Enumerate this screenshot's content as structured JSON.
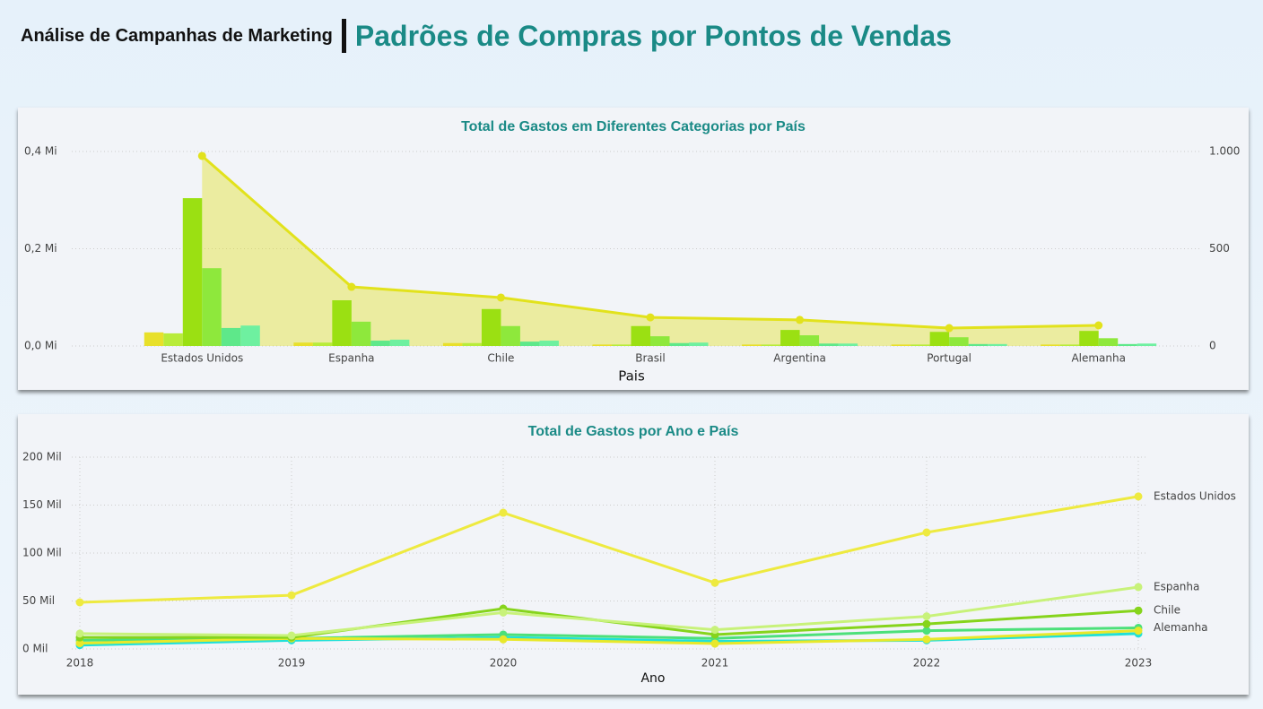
{
  "header": {
    "title": "Análise de Campanhas de Marketing",
    "subtitle": "Padrões de Compras por Pontos de Vendas"
  },
  "chart_data": [
    {
      "type": "bar",
      "title": "Total de Gastos em Diferentes Categorias por País",
      "x_label": "Pais",
      "categories": [
        "Estados Unidos",
        "Espanha",
        "Chile",
        "Brasil",
        "Argentina",
        "Portugal",
        "Alemanha"
      ],
      "series": [
        {
          "color": "#e8e02a",
          "values": [
            0.028,
            0.007,
            0.006,
            0.003,
            0.003,
            0.003,
            0.003
          ]
        },
        {
          "color": "#b8ec3a",
          "values": [
            0.026,
            0.007,
            0.006,
            0.003,
            0.003,
            0.003,
            0.003
          ]
        },
        {
          "color": "#9be012",
          "values": [
            0.304,
            0.094,
            0.076,
            0.041,
            0.033,
            0.029,
            0.031
          ]
        },
        {
          "color": "#8ee83c",
          "values": [
            0.16,
            0.05,
            0.041,
            0.02,
            0.022,
            0.018,
            0.016
          ]
        },
        {
          "color": "#5ee88a",
          "values": [
            0.037,
            0.011,
            0.009,
            0.006,
            0.005,
            0.004,
            0.004
          ]
        },
        {
          "color": "#6ef0a0",
          "values": [
            0.042,
            0.013,
            0.011,
            0.007,
            0.005,
            0.004,
            0.005
          ]
        },
        {
          "type": "area",
          "axis": "y2",
          "color": "#e2e21c",
          "values": [
            977,
            304,
            249,
            147,
            134,
            92,
            106
          ]
        }
      ],
      "ylim": [
        0,
        0.4
      ],
      "yticks": [
        {
          "value": 0,
          "label": "0,0 Mi"
        },
        {
          "value": 0.2,
          "label": "0,2 Mi"
        },
        {
          "value": 0.4,
          "label": "0,4 Mi"
        }
      ],
      "y2lim": [
        0,
        1000
      ],
      "y2ticks": [
        0,
        500,
        {
          "value": 1000,
          "label": "1.000"
        }
      ],
      "grid": true
    },
    {
      "type": "line",
      "title": "Total de Gastos por Ano e País",
      "x_label": "Ano",
      "x": [
        2018,
        2019,
        2020,
        2021,
        2022,
        2023
      ],
      "xlim": [
        2018,
        2023
      ],
      "xticks": [
        2018,
        2019,
        2020,
        2021,
        2022,
        2023
      ],
      "series": [
        {
          "color": "#20e0d8",
          "values": [
            4,
            9,
            12,
            8,
            9,
            16
          ]
        },
        {
          "name": "Alemanha",
          "color": "#4ce07a",
          "values": [
            9,
            11,
            15,
            11,
            19,
            22
          ]
        },
        {
          "color": "#e8e82a",
          "values": [
            6,
            11,
            10,
            5.6,
            10,
            19
          ]
        },
        {
          "name": "Chile",
          "color": "#86d41c",
          "values": [
            12,
            12,
            42,
            15,
            26,
            40
          ]
        },
        {
          "name": "Espanha",
          "color": "#c8f27a",
          "values": [
            16,
            14,
            38,
            20,
            34,
            64.5
          ]
        },
        {
          "name": "Estados Unidos",
          "color": "#eeea40",
          "values": [
            48.6,
            56,
            142,
            69,
            121.5,
            159
          ]
        }
      ],
      "ylim": [
        0,
        200
      ],
      "yticks": [
        {
          "value": 0,
          "label": "0 Mil"
        },
        {
          "value": 50,
          "label": "50 Mil"
        },
        {
          "value": 100,
          "label": "100 Mil"
        },
        {
          "value": 150,
          "label": "150 Mil"
        },
        {
          "value": 200,
          "label": "200 Mil"
        }
      ],
      "grid": true
    }
  ]
}
